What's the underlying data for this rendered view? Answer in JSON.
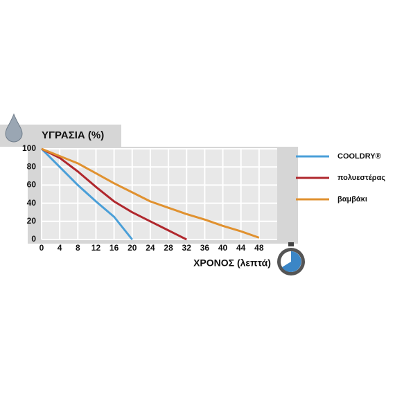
{
  "chart_data": {
    "type": "line",
    "title": "ΥΓΡΑΣΙΑ (%)",
    "x_label": "ΧΡΟΝΟΣ (λεπτά)",
    "xlim": [
      0,
      52
    ],
    "xticks": [
      0,
      4,
      8,
      12,
      16,
      20,
      24,
      28,
      32,
      36,
      40,
      44,
      48
    ],
    "ylim": [
      0,
      100
    ],
    "yticks": [
      0,
      20,
      40,
      60,
      80,
      100
    ],
    "grid": true,
    "legend": "right",
    "series": [
      {
        "name": "COOLDRY®",
        "color": "#4a9fd8",
        "x": [
          0,
          4,
          8,
          12,
          16,
          20
        ],
        "values": [
          100,
          80,
          60,
          42,
          25,
          0
        ]
      },
      {
        "name": "πολυεστέρας",
        "color": "#b0272d",
        "x": [
          0,
          4,
          8,
          12,
          16,
          20,
          24,
          28,
          32
        ],
        "values": [
          100,
          90,
          75,
          58,
          42,
          30,
          20,
          10,
          0
        ]
      },
      {
        "name": "βαμβάκι",
        "color": "#e0912f",
        "x": [
          0,
          4,
          8,
          12,
          16,
          20,
          24,
          28,
          32,
          36,
          40,
          44,
          48
        ],
        "values": [
          100,
          92,
          84,
          73,
          62,
          52,
          42,
          35,
          28,
          22,
          15,
          9,
          2
        ]
      }
    ]
  }
}
